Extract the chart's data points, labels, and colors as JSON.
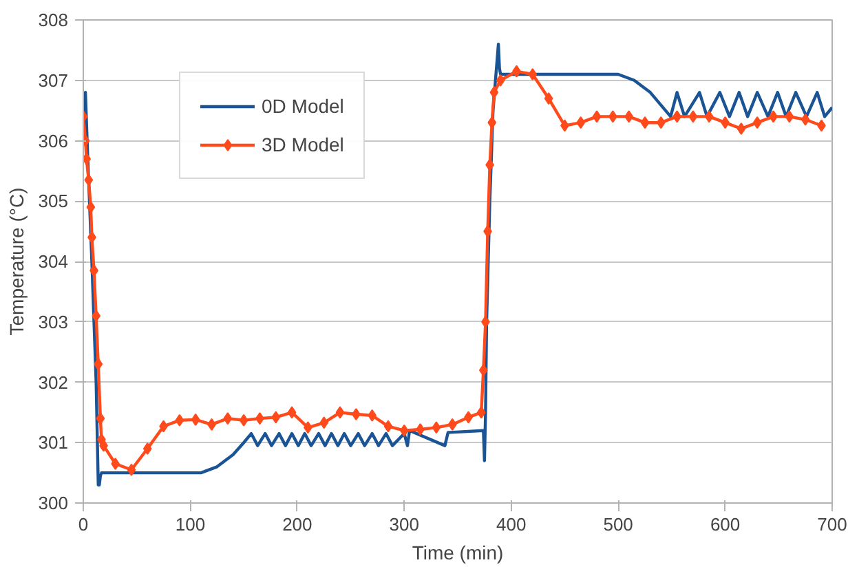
{
  "chart_data": {
    "type": "line",
    "xlabel": "Time (min)",
    "ylabel": "Temperature (°C)",
    "xlim": [
      0,
      700
    ],
    "ylim": [
      300,
      308
    ],
    "xticks": [
      0,
      100,
      200,
      300,
      400,
      500,
      600,
      700
    ],
    "yticks": [
      300,
      301,
      302,
      303,
      304,
      305,
      306,
      307,
      308
    ],
    "grid": "y",
    "legend": "top left",
    "series": [
      {
        "name": "0D Model",
        "color": "#1a5494",
        "marker": "none",
        "x": [
          0,
          2,
          4,
          8,
          12,
          14,
          15,
          16,
          17,
          110,
          125,
          140,
          150,
          157,
          163,
          170,
          176,
          183,
          189,
          195,
          201,
          207,
          213,
          220,
          226,
          232,
          238,
          244,
          250,
          257,
          263,
          270,
          276,
          283,
          289,
          300,
          303,
          305,
          338,
          341,
          343,
          374,
          375,
          376,
          377,
          380,
          383,
          388,
          389,
          390,
          392,
          500,
          515,
          530,
          549,
          555,
          562,
          576,
          583,
          595,
          604,
          613,
          621,
          630,
          640,
          649,
          657,
          666,
          676,
          686,
          693,
          700
        ],
        "values": [
          306.1,
          306.8,
          305.8,
          304.0,
          302.0,
          300.3,
          300.3,
          300.45,
          300.5,
          300.5,
          300.6,
          300.8,
          301.0,
          301.15,
          300.95,
          301.15,
          300.95,
          301.15,
          300.95,
          301.15,
          300.95,
          301.15,
          300.95,
          301.15,
          300.95,
          301.15,
          300.95,
          301.15,
          300.95,
          301.15,
          300.95,
          301.15,
          300.95,
          301.15,
          300.95,
          301.15,
          300.95,
          301.2,
          300.95,
          301.17,
          301.17,
          301.2,
          300.7,
          301.5,
          303.0,
          305.0,
          306.5,
          307.6,
          307.2,
          307.1,
          307.1,
          307.1,
          307.0,
          306.8,
          306.4,
          306.8,
          306.4,
          306.8,
          306.4,
          306.8,
          306.4,
          306.8,
          306.4,
          306.8,
          306.4,
          306.8,
          306.4,
          306.8,
          306.4,
          306.8,
          306.4,
          306.55
        ]
      },
      {
        "name": "3D Model",
        "color": "#ff4a1c",
        "marker": "diamond",
        "x": [
          0,
          2,
          3,
          5,
          7,
          8,
          10,
          12,
          14,
          16,
          17,
          19,
          30,
          45,
          60,
          75,
          90,
          105,
          120,
          135,
          150,
          165,
          180,
          195,
          210,
          225,
          240,
          255,
          270,
          285,
          300,
          315,
          330,
          345,
          360,
          372,
          374,
          376,
          378,
          380,
          382,
          384,
          390,
          405,
          420,
          435,
          450,
          465,
          480,
          495,
          510,
          525,
          540,
          555,
          570,
          585,
          600,
          615,
          630,
          645,
          660,
          675,
          690
        ],
        "values": [
          306.4,
          306.0,
          305.7,
          305.35,
          304.9,
          304.4,
          303.85,
          303.1,
          302.3,
          301.4,
          301.05,
          300.95,
          300.65,
          300.55,
          300.9,
          301.27,
          301.37,
          301.38,
          301.3,
          301.4,
          301.37,
          301.4,
          301.42,
          301.5,
          301.25,
          301.33,
          301.5,
          301.47,
          301.45,
          301.27,
          301.2,
          301.22,
          301.25,
          301.3,
          301.42,
          301.5,
          302.2,
          303.0,
          304.5,
          305.6,
          306.3,
          306.8,
          307.0,
          307.15,
          307.1,
          306.7,
          306.25,
          306.3,
          306.4,
          306.4,
          306.4,
          306.3,
          306.3,
          306.4,
          306.4,
          306.4,
          306.3,
          306.2,
          306.3,
          306.4,
          306.4,
          306.35,
          306.25
        ]
      }
    ]
  }
}
